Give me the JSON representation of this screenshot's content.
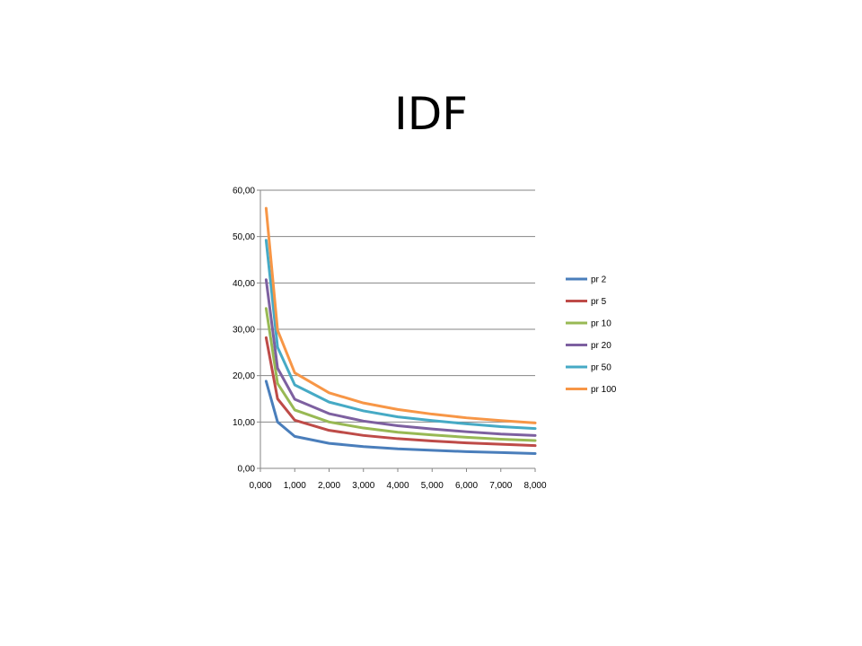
{
  "slide": {
    "title": "IDF"
  },
  "chart_data": {
    "type": "line",
    "title": "",
    "xlabel": "",
    "ylabel": "",
    "xlim": [
      0,
      8
    ],
    "ylim": [
      0,
      60
    ],
    "x_ticks": [
      "0,000",
      "1,000",
      "2,000",
      "3,000",
      "4,000",
      "5,000",
      "6,000",
      "7,000",
      "8,000"
    ],
    "y_ticks": [
      "0,00",
      "10,00",
      "20,00",
      "30,00",
      "40,00",
      "50,00",
      "60,00"
    ],
    "grid": "horizontal",
    "legend_position": "right",
    "x": [
      0.167,
      0.5,
      1,
      2,
      3,
      4,
      5,
      6,
      7,
      8
    ],
    "series": [
      {
        "name": "pr 2",
        "color": "#4a7ebb",
        "values": [
          18.8,
          10.0,
          6.9,
          5.4,
          4.7,
          4.2,
          3.9,
          3.6,
          3.4,
          3.2
        ]
      },
      {
        "name": "pr 5",
        "color": "#be4b48",
        "values": [
          28.2,
          15.0,
          10.4,
          8.2,
          7.1,
          6.4,
          5.9,
          5.5,
          5.2,
          4.9
        ]
      },
      {
        "name": "pr 10",
        "color": "#98b954",
        "values": [
          34.5,
          18.3,
          12.6,
          10.0,
          8.7,
          7.8,
          7.2,
          6.7,
          6.3,
          6.0
        ]
      },
      {
        "name": "pr 20",
        "color": "#7d60a0",
        "values": [
          40.7,
          21.6,
          14.9,
          11.8,
          10.2,
          9.2,
          8.5,
          7.9,
          7.4,
          7.1
        ]
      },
      {
        "name": "pr 50",
        "color": "#46aac5",
        "values": [
          49.2,
          26.1,
          18.0,
          14.3,
          12.4,
          11.1,
          10.3,
          9.6,
          9.0,
          8.6
        ]
      },
      {
        "name": "pr 100",
        "color": "#f79646",
        "values": [
          56.1,
          29.8,
          20.6,
          16.3,
          14.1,
          12.7,
          11.7,
          10.9,
          10.3,
          9.8
        ]
      }
    ]
  }
}
